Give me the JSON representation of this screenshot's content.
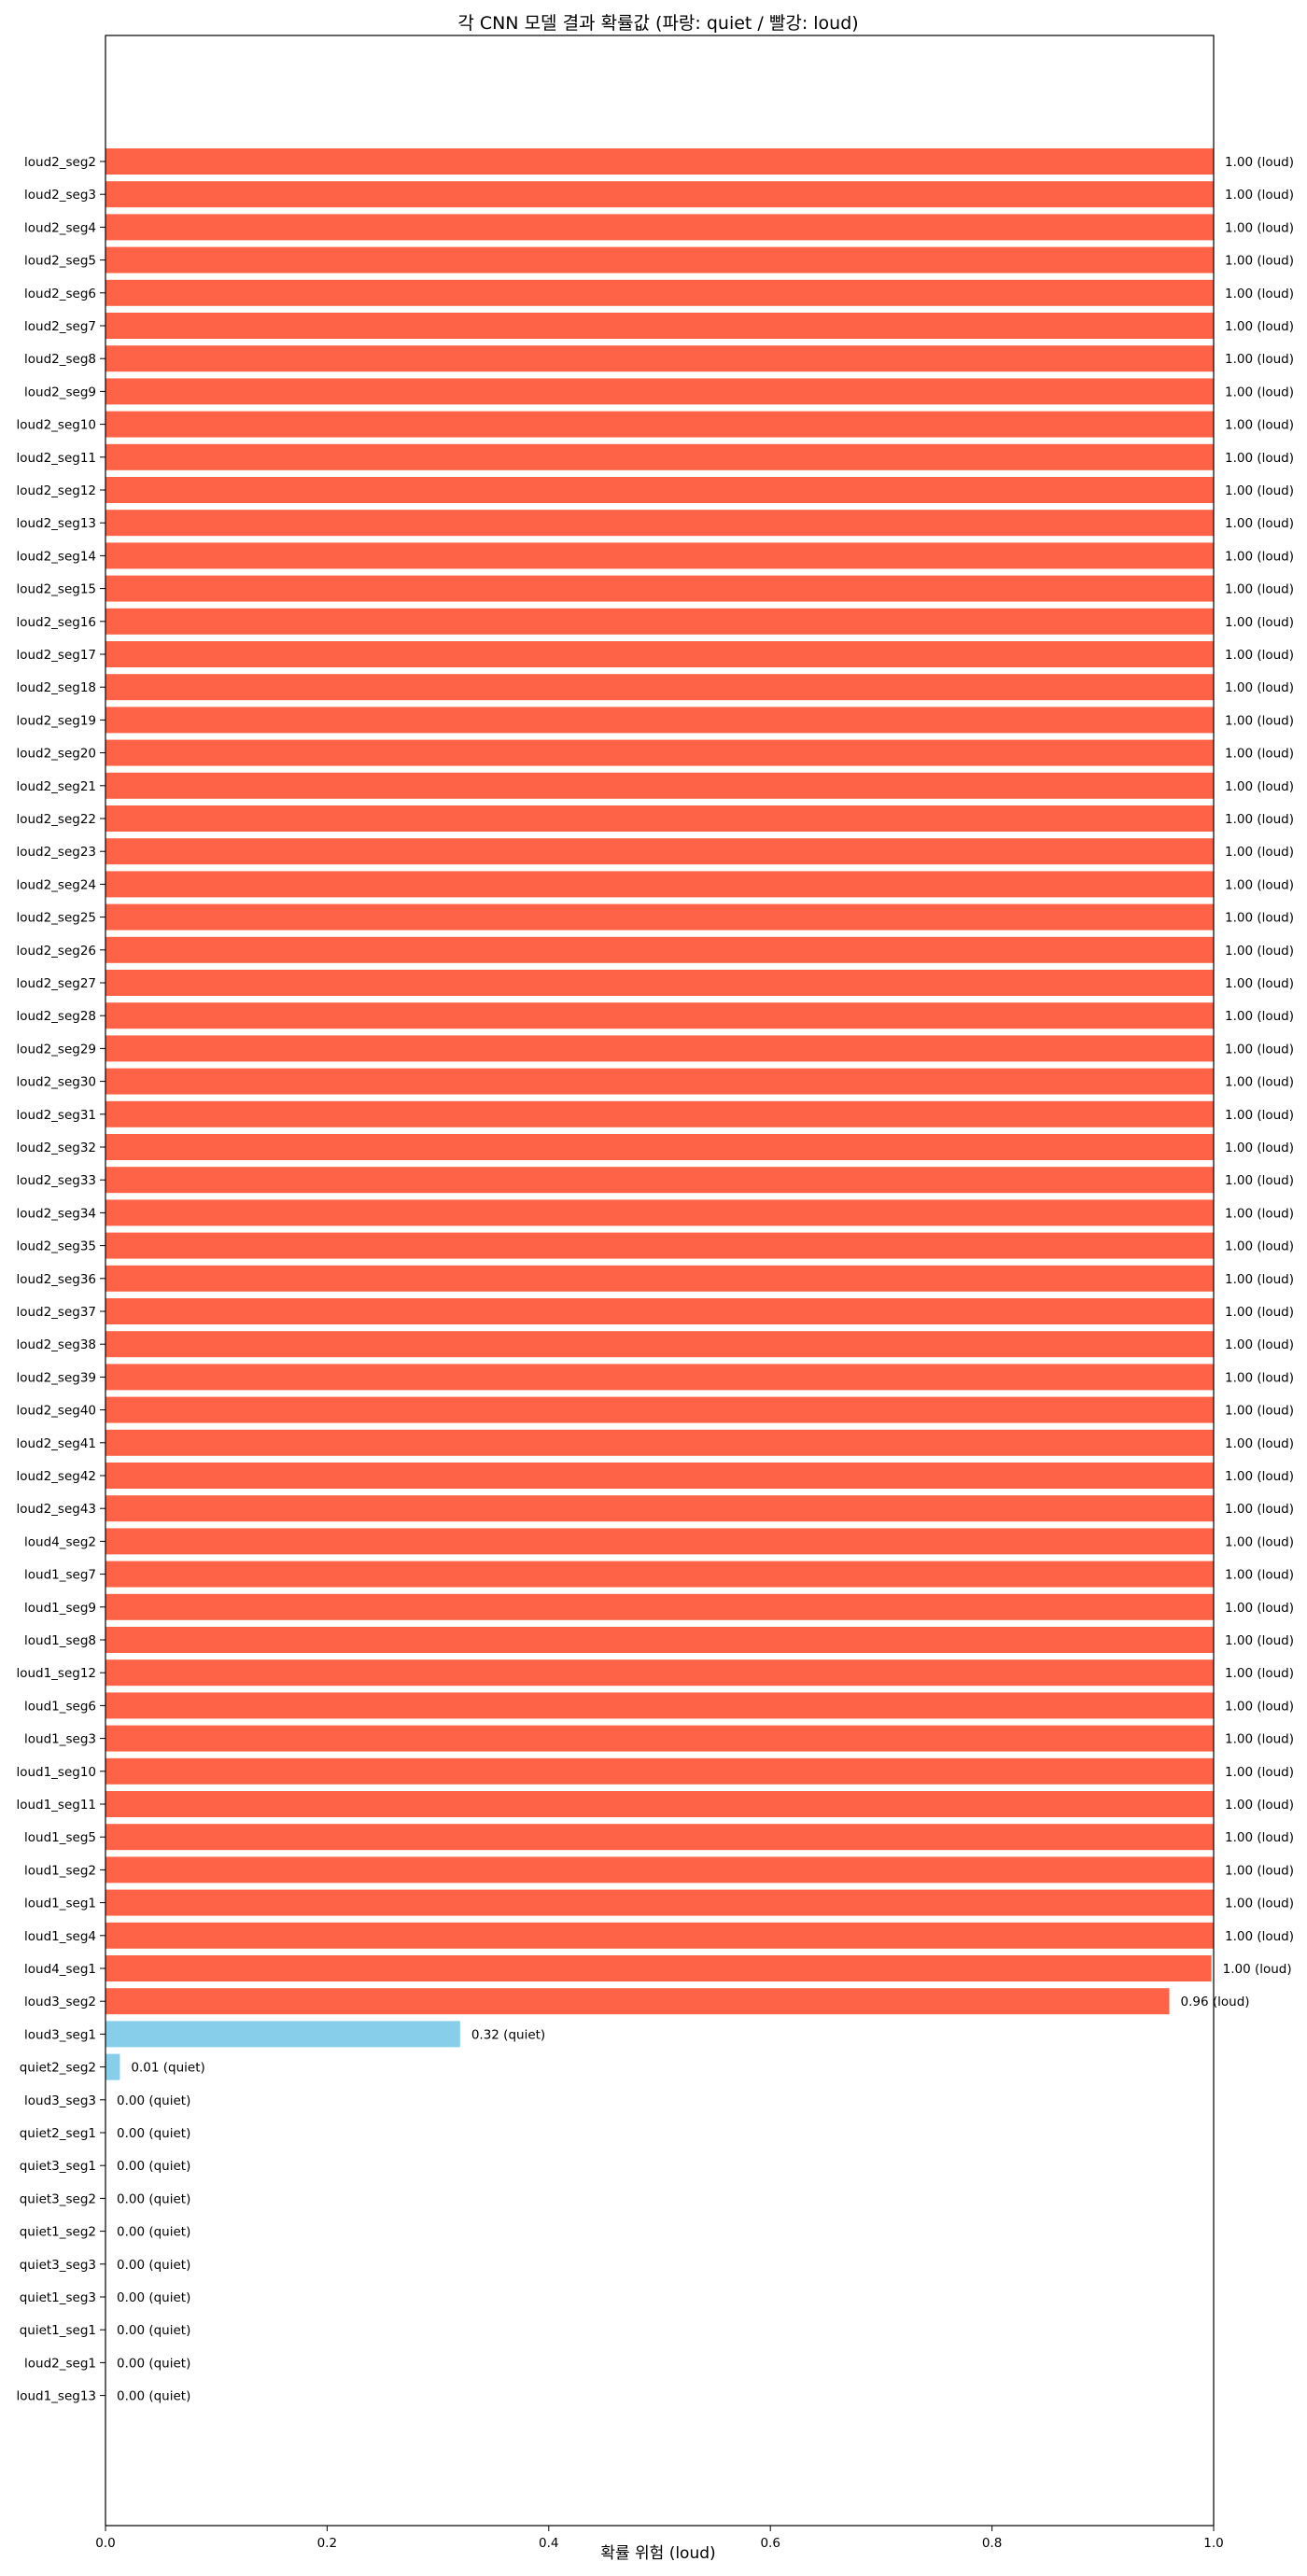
{
  "chart_data": {
    "type": "bar",
    "orientation": "horizontal",
    "title": "각 CNN 모델 결과 확률값 (파랑: quiet / 빨강: loud)",
    "xlabel": "확률 위험 (loud)",
    "ylabel": "",
    "xlim": [
      0,
      1
    ],
    "xticks": [
      0.0,
      0.2,
      0.4,
      0.6,
      0.8,
      1.0
    ],
    "xtick_labels": [
      "0.0",
      "0.2",
      "0.4",
      "0.6",
      "0.8",
      "1.0"
    ],
    "grid": false,
    "colors": {
      "loud": "#ff6347",
      "quiet": "#87ceeb"
    },
    "categories": [
      "loud2_seg2",
      "loud2_seg3",
      "loud2_seg4",
      "loud2_seg5",
      "loud2_seg6",
      "loud2_seg7",
      "loud2_seg8",
      "loud2_seg9",
      "loud2_seg10",
      "loud2_seg11",
      "loud2_seg12",
      "loud2_seg13",
      "loud2_seg14",
      "loud2_seg15",
      "loud2_seg16",
      "loud2_seg17",
      "loud2_seg18",
      "loud2_seg19",
      "loud2_seg20",
      "loud2_seg21",
      "loud2_seg22",
      "loud2_seg23",
      "loud2_seg24",
      "loud2_seg25",
      "loud2_seg26",
      "loud2_seg27",
      "loud2_seg28",
      "loud2_seg29",
      "loud2_seg30",
      "loud2_seg31",
      "loud2_seg32",
      "loud2_seg33",
      "loud2_seg34",
      "loud2_seg35",
      "loud2_seg36",
      "loud2_seg37",
      "loud2_seg38",
      "loud2_seg39",
      "loud2_seg40",
      "loud2_seg41",
      "loud2_seg42",
      "loud2_seg43",
      "loud4_seg2",
      "loud1_seg7",
      "loud1_seg9",
      "loud1_seg8",
      "loud1_seg12",
      "loud1_seg6",
      "loud1_seg3",
      "loud1_seg10",
      "loud1_seg11",
      "loud1_seg5",
      "loud1_seg2",
      "loud1_seg1",
      "loud1_seg4",
      "loud4_seg1",
      "loud3_seg2",
      "loud3_seg1",
      "quiet2_seg2",
      "loud3_seg3",
      "quiet2_seg1",
      "quiet3_seg1",
      "quiet3_seg2",
      "quiet1_seg2",
      "quiet3_seg3",
      "quiet1_seg3",
      "quiet1_seg1",
      "loud2_seg1",
      "loud1_seg13"
    ],
    "values": [
      1.0,
      1.0,
      1.0,
      1.0,
      1.0,
      1.0,
      1.0,
      1.0,
      1.0,
      1.0,
      1.0,
      1.0,
      1.0,
      1.0,
      1.0,
      1.0,
      1.0,
      1.0,
      1.0,
      1.0,
      1.0,
      1.0,
      1.0,
      1.0,
      1.0,
      1.0,
      1.0,
      1.0,
      1.0,
      1.0,
      1.0,
      1.0,
      1.0,
      1.0,
      1.0,
      1.0,
      1.0,
      1.0,
      1.0,
      1.0,
      1.0,
      1.0,
      1.0,
      1.0,
      1.0,
      1.0,
      1.0,
      1.0,
      1.0,
      1.0,
      1.0,
      1.0,
      1.0,
      1.0,
      1.0,
      0.998,
      0.96,
      0.32,
      0.013,
      0.0,
      0.0,
      0.0,
      0.0,
      0.0,
      0.0,
      0.0,
      0.0,
      0.0,
      0.0
    ],
    "labels": [
      "1.00 (loud)",
      "1.00 (loud)",
      "1.00 (loud)",
      "1.00 (loud)",
      "1.00 (loud)",
      "1.00 (loud)",
      "1.00 (loud)",
      "1.00 (loud)",
      "1.00 (loud)",
      "1.00 (loud)",
      "1.00 (loud)",
      "1.00 (loud)",
      "1.00 (loud)",
      "1.00 (loud)",
      "1.00 (loud)",
      "1.00 (loud)",
      "1.00 (loud)",
      "1.00 (loud)",
      "1.00 (loud)",
      "1.00 (loud)",
      "1.00 (loud)",
      "1.00 (loud)",
      "1.00 (loud)",
      "1.00 (loud)",
      "1.00 (loud)",
      "1.00 (loud)",
      "1.00 (loud)",
      "1.00 (loud)",
      "1.00 (loud)",
      "1.00 (loud)",
      "1.00 (loud)",
      "1.00 (loud)",
      "1.00 (loud)",
      "1.00 (loud)",
      "1.00 (loud)",
      "1.00 (loud)",
      "1.00 (loud)",
      "1.00 (loud)",
      "1.00 (loud)",
      "1.00 (loud)",
      "1.00 (loud)",
      "1.00 (loud)",
      "1.00 (loud)",
      "1.00 (loud)",
      "1.00 (loud)",
      "1.00 (loud)",
      "1.00 (loud)",
      "1.00 (loud)",
      "1.00 (loud)",
      "1.00 (loud)",
      "1.00 (loud)",
      "1.00 (loud)",
      "1.00 (loud)",
      "1.00 (loud)",
      "1.00 (loud)",
      "1.00 (loud)",
      "0.96 (loud)",
      "0.32 (quiet)",
      "0.01 (quiet)",
      "0.00 (quiet)",
      "0.00 (quiet)",
      "0.00 (quiet)",
      "0.00 (quiet)",
      "0.00 (quiet)",
      "0.00 (quiet)",
      "0.00 (quiet)",
      "0.00 (quiet)",
      "0.00 (quiet)",
      "0.00 (quiet)"
    ],
    "classes": [
      "loud",
      "loud",
      "loud",
      "loud",
      "loud",
      "loud",
      "loud",
      "loud",
      "loud",
      "loud",
      "loud",
      "loud",
      "loud",
      "loud",
      "loud",
      "loud",
      "loud",
      "loud",
      "loud",
      "loud",
      "loud",
      "loud",
      "loud",
      "loud",
      "loud",
      "loud",
      "loud",
      "loud",
      "loud",
      "loud",
      "loud",
      "loud",
      "loud",
      "loud",
      "loud",
      "loud",
      "loud",
      "loud",
      "loud",
      "loud",
      "loud",
      "loud",
      "loud",
      "loud",
      "loud",
      "loud",
      "loud",
      "loud",
      "loud",
      "loud",
      "loud",
      "loud",
      "loud",
      "loud",
      "loud",
      "loud",
      "loud",
      "quiet",
      "quiet",
      "quiet",
      "quiet",
      "quiet",
      "quiet",
      "quiet",
      "quiet",
      "quiet",
      "quiet",
      "quiet",
      "quiet"
    ]
  }
}
